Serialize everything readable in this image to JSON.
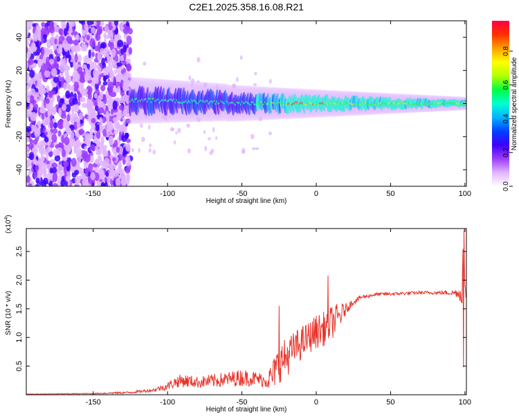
{
  "title": "C2E1.2025.358.16.08.R21",
  "chart_data": [
    {
      "type": "heatmap",
      "xlabel": "Height of straight line (km)",
      "ylabel": "Frequency (Hz)",
      "xlim": [
        -195,
        101
      ],
      "ylim": [
        -50,
        50
      ],
      "x_ticks": [
        -150,
        -100,
        -50,
        0,
        50,
        100
      ],
      "y_ticks": [
        -40,
        -20,
        0,
        20,
        40
      ],
      "colorbar": {
        "label": "Normalized spectral amplitude",
        "range": [
          0,
          0.98
        ],
        "ticks": [
          "0.0",
          "0.2",
          "0.4",
          "0.6",
          "0.8"
        ],
        "tick_values": [
          0.0,
          0.2,
          0.4,
          0.6,
          0.8
        ],
        "colors": [
          "#ffffff",
          "#e0b4ff",
          "#9c3cff",
          "#3c00ff",
          "#0040ff",
          "#00b4ff",
          "#00ffd0",
          "#00ff40",
          "#b4ff00",
          "#ffff00",
          "#ffa000",
          "#ff3000",
          "#ff0040"
        ]
      },
      "regions": {
        "diffuse_noise_x_range": [
          -195,
          -125
        ],
        "band_start_km": -125,
        "band_center_frequency_hz": 0,
        "band_halfwidth_hz_start": 9,
        "band_halfwidth_hz_end": 2.5,
        "peak_band_x_range": [
          -20,
          12
        ]
      }
    },
    {
      "type": "line",
      "xlabel": "Height of straight line (km)",
      "ylabel": "SNR (10 * v/v)",
      "y_scale_note": "(x10",
      "y_scale_exponent": "4",
      "y_scale_suffix": ")",
      "xlim": [
        -195,
        101
      ],
      "ylim": [
        0,
        2.9
      ],
      "x_ticks": [
        -150,
        -100,
        -50,
        0,
        50,
        100
      ],
      "y_ticks": [
        0.5,
        1.0,
        1.5,
        2.0,
        2.5
      ],
      "y_tick_labels": [
        "0.5",
        "1.0",
        "1.5",
        "2.0",
        "2.5"
      ],
      "color": "#e8332a",
      "series": [
        {
          "name": "SNR",
          "x": [
            -195,
            -150,
            -125,
            -110,
            -100,
            -95,
            -90,
            -80,
            -70,
            -60,
            -50,
            -40,
            -35,
            -30,
            -25,
            -20,
            -15,
            -10,
            -5,
            0,
            5,
            10,
            15,
            20,
            25,
            30,
            40,
            50,
            60,
            70,
            80,
            90,
            95,
            98,
            99,
            100,
            101
          ],
          "y": [
            0.01,
            0.02,
            0.04,
            0.08,
            0.15,
            0.22,
            0.25,
            0.22,
            0.24,
            0.27,
            0.3,
            0.28,
            0.25,
            0.3,
            0.55,
            0.65,
            0.8,
            0.9,
            1.0,
            1.1,
            1.15,
            1.25,
            1.35,
            1.5,
            1.62,
            1.7,
            1.75,
            1.76,
            1.77,
            1.78,
            1.78,
            1.78,
            1.78,
            1.75,
            2.8,
            1.85,
            1.75
          ],
          "noise_amplitude": [
            0.005,
            0.01,
            0.02,
            0.03,
            0.07,
            0.1,
            0.12,
            0.1,
            0.12,
            0.13,
            0.15,
            0.13,
            0.12,
            0.25,
            0.35,
            0.35,
            0.3,
            0.3,
            0.28,
            0.3,
            0.3,
            0.3,
            0.25,
            0.1,
            0.05,
            0.04,
            0.03,
            0.03,
            0.03,
            0.03,
            0.03,
            0.04,
            0.08,
            0.2,
            0.1,
            0.1,
            0.1
          ],
          "peaks": [
            {
              "x": -25,
              "y": 1.55
            },
            {
              "x": 8,
              "y": 2.08
            },
            {
              "x": 99.3,
              "y": 2.88
            },
            {
              "x": 99.0,
              "y": 0.48
            }
          ]
        }
      ]
    }
  ]
}
